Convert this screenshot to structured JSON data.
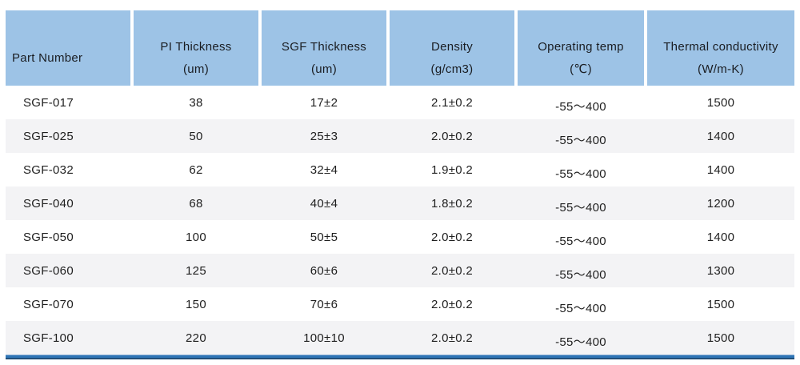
{
  "table": {
    "column_keys": [
      "part-number",
      "pi-thickness",
      "sgf-thickness",
      "density",
      "operating-temp",
      "thermal-conductivity"
    ],
    "columns": [
      {
        "line1": "Part Number",
        "line2": ""
      },
      {
        "line1": "PI Thickness",
        "line2": "(um)"
      },
      {
        "line1": "SGF Thickness",
        "line2": "(um)"
      },
      {
        "line1": "Density",
        "line2": "(g/cm3)"
      },
      {
        "line1": "Operating temp",
        "line2": "(℃)"
      },
      {
        "line1": "Thermal conductivity",
        "line2": "(W/m-K)"
      }
    ],
    "rows": [
      [
        "SGF-017",
        "38",
        "17±2",
        "2.1±0.2",
        "-55～400",
        "1500"
      ],
      [
        "SGF-025",
        "50",
        "25±3",
        "2.0±0.2",
        "-55～400",
        "1400"
      ],
      [
        "SGF-032",
        "62",
        "32±4",
        "1.9±0.2",
        "-55～400",
        "1400"
      ],
      [
        "SGF-040",
        "68",
        "40±4",
        "1.8±0.2",
        "-55～400",
        "1200"
      ],
      [
        "SGF-050",
        "100",
        "50±5",
        "2.0±0.2",
        "-55～400",
        "1400"
      ],
      [
        "SGF-060",
        "125",
        "60±6",
        "2.0±0.2",
        "-55～400",
        "1300"
      ],
      [
        "SGF-070",
        "150",
        "70±6",
        "2.0±0.2",
        "-55～400",
        "1500"
      ],
      [
        "SGF-100",
        "220",
        "100±10",
        "2.0±0.2",
        "-55～400",
        "1500"
      ]
    ]
  },
  "colors": {
    "header_bg": "#9dc3e6",
    "row_alt_bg": "#f3f3f5",
    "bottom_rule": "#2e74b5",
    "bottom_rule_dark": "#1f4e79",
    "text": "#1f1f1f"
  }
}
